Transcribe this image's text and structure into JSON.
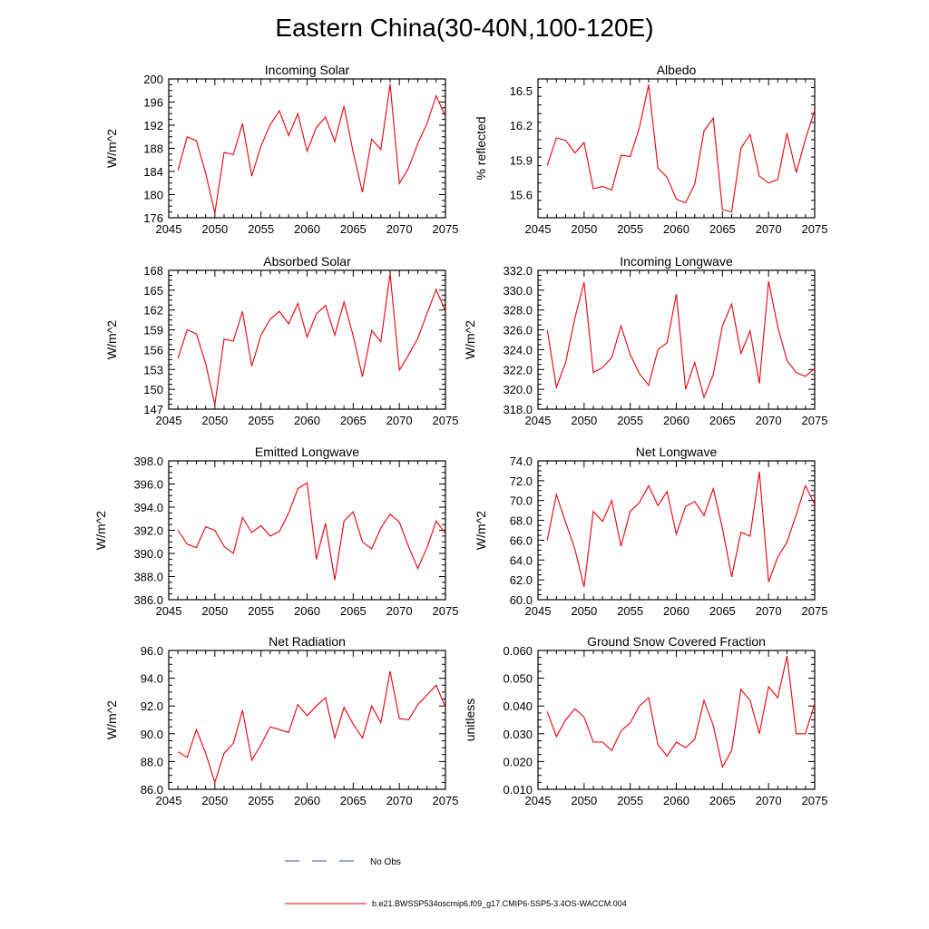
{
  "figure": {
    "title": "Eastern China(30-40N,100-120E)"
  },
  "legend": {
    "obs_label": "No Obs",
    "obs_color": "#3b4fb0",
    "model_label": "b.e21.BWSSP534oscmip6.f09_g17.CMIP6-SSP5-3.4OS-WACCM.004",
    "model_color": "#e8000b"
  },
  "chart_data": [
    {
      "type": "line",
      "title": "Incoming Solar",
      "xlabel": "",
      "ylabel": "W/m^2",
      "xlim": [
        2045,
        2075
      ],
      "ylim": [
        176,
        200
      ],
      "xticks": [
        2045,
        2050,
        2055,
        2060,
        2065,
        2070,
        2075
      ],
      "yticks": [
        176,
        180,
        184,
        188,
        192,
        196,
        200
      ],
      "ytick_labels": [
        "176",
        "180",
        "184",
        "188",
        "192",
        "196",
        "200"
      ],
      "x": [
        2046,
        2047,
        2048,
        2049,
        2050,
        2051,
        2052,
        2053,
        2054,
        2055,
        2056,
        2057,
        2058,
        2059,
        2060,
        2061,
        2062,
        2063,
        2064,
        2065,
        2066,
        2067,
        2068,
        2069,
        2070,
        2071,
        2072,
        2073,
        2074,
        2075
      ],
      "series": [
        {
          "name": "b.e21.BWSSP534oscmip6.f09_g17.CMIP6-SSP5-3.4OS-WACCM.004",
          "values": [
            184.2,
            190.0,
            189.3,
            183.7,
            176.8,
            187.3,
            186.9,
            192.3,
            183.2,
            188.4,
            192.1,
            194.5,
            190.2,
            194.0,
            187.5,
            191.6,
            193.4,
            189.2,
            195.3,
            187.3,
            180.4,
            189.6,
            187.8,
            199.1,
            181.9,
            184.6,
            188.8,
            192.3,
            197.1,
            193.5
          ]
        }
      ]
    },
    {
      "type": "line",
      "title": "Albedo",
      "xlabel": "",
      "ylabel": "% reflected",
      "xlim": [
        2045,
        2075
      ],
      "ylim": [
        15.4,
        16.6
      ],
      "xticks": [
        2045,
        2050,
        2055,
        2060,
        2065,
        2070,
        2075
      ],
      "yticks": [
        15.6,
        15.9,
        16.2,
        16.5
      ],
      "ytick_labels": [
        "15.6",
        "15.9",
        "16.2",
        "16.5"
      ],
      "x": [
        2046,
        2047,
        2048,
        2049,
        2050,
        2051,
        2052,
        2053,
        2054,
        2055,
        2056,
        2057,
        2058,
        2059,
        2060,
        2061,
        2062,
        2063,
        2064,
        2065,
        2066,
        2067,
        2068,
        2069,
        2070,
        2071,
        2072,
        2073,
        2074,
        2075
      ],
      "series": [
        {
          "name": "b.e21.BWSSP534oscmip6.f09_g17.CMIP6-SSP5-3.4OS-WACCM.004",
          "values": [
            15.85,
            16.09,
            16.07,
            15.96,
            16.05,
            15.65,
            15.67,
            15.64,
            15.94,
            15.93,
            16.18,
            16.55,
            15.83,
            15.75,
            15.56,
            15.53,
            15.69,
            16.15,
            16.26,
            15.47,
            15.45,
            16.0,
            16.12,
            15.76,
            15.7,
            15.73,
            16.13,
            15.79,
            16.08,
            16.33
          ]
        }
      ]
    },
    {
      "type": "line",
      "title": "Absorbed Solar",
      "xlabel": "",
      "ylabel": "W/m^2",
      "xlim": [
        2045,
        2075
      ],
      "ylim": [
        147,
        168
      ],
      "xticks": [
        2045,
        2050,
        2055,
        2060,
        2065,
        2070,
        2075
      ],
      "yticks": [
        147,
        150,
        153,
        156,
        159,
        162,
        165,
        168
      ],
      "ytick_labels": [
        "147",
        "150",
        "153",
        "156",
        "159",
        "162",
        "165",
        "168"
      ],
      "x": [
        2046,
        2047,
        2048,
        2049,
        2050,
        2051,
        2052,
        2053,
        2054,
        2055,
        2056,
        2057,
        2058,
        2059,
        2060,
        2061,
        2062,
        2063,
        2064,
        2065,
        2066,
        2067,
        2068,
        2069,
        2070,
        2071,
        2072,
        2073,
        2074,
        2075
      ],
      "series": [
        {
          "name": "b.e21.BWSSP534oscmip6.f09_g17.CMIP6-SSP5-3.4OS-WACCM.004",
          "values": [
            154.7,
            159.0,
            158.4,
            153.9,
            147.7,
            157.6,
            157.3,
            161.8,
            153.5,
            158.2,
            160.6,
            161.8,
            159.9,
            163.0,
            157.9,
            161.4,
            162.7,
            158.2,
            163.2,
            158.1,
            151.9,
            158.9,
            157.2,
            167.5,
            152.9,
            155.2,
            157.7,
            161.5,
            165.1,
            161.8
          ]
        }
      ]
    },
    {
      "type": "line",
      "title": "Incoming Longwave",
      "xlabel": "",
      "ylabel": "W/m^2",
      "xlim": [
        2045,
        2075
      ],
      "ylim": [
        318.0,
        332.0
      ],
      "xticks": [
        2045,
        2050,
        2055,
        2060,
        2065,
        2070,
        2075
      ],
      "yticks": [
        318,
        320,
        322,
        324,
        326,
        328,
        330,
        332
      ],
      "ytick_labels": [
        "318.0",
        "320.0",
        "322.0",
        "324.0",
        "326.0",
        "328.0",
        "330.0",
        "332.0"
      ],
      "x": [
        2046,
        2047,
        2048,
        2049,
        2050,
        2051,
        2052,
        2053,
        2054,
        2055,
        2056,
        2057,
        2058,
        2059,
        2060,
        2061,
        2062,
        2063,
        2064,
        2065,
        2066,
        2067,
        2068,
        2069,
        2070,
        2071,
        2072,
        2073,
        2074,
        2075
      ],
      "series": [
        {
          "name": "b.e21.BWSSP534oscmip6.f09_g17.CMIP6-SSP5-3.4OS-WACCM.004",
          "values": [
            326.0,
            320.2,
            322.7,
            327.2,
            330.8,
            321.7,
            322.2,
            323.2,
            326.4,
            323.5,
            321.6,
            320.4,
            324.0,
            324.7,
            329.6,
            320.0,
            322.7,
            319.2,
            321.5,
            326.4,
            328.6,
            323.6,
            325.9,
            320.6,
            330.9,
            326.3,
            322.9,
            321.7,
            321.3,
            322.1
          ]
        }
      ]
    },
    {
      "type": "line",
      "title": "Emitted Longwave",
      "xlabel": "",
      "ylabel": "W/m^2",
      "xlim": [
        2045,
        2075
      ],
      "ylim": [
        386.0,
        398.0
      ],
      "xticks": [
        2045,
        2050,
        2055,
        2060,
        2065,
        2070,
        2075
      ],
      "yticks": [
        386,
        388,
        390,
        392,
        394,
        396,
        398
      ],
      "ytick_labels": [
        "386.0",
        "388.0",
        "390.0",
        "392.0",
        "394.0",
        "396.0",
        "398.0"
      ],
      "x": [
        2046,
        2047,
        2048,
        2049,
        2050,
        2051,
        2052,
        2053,
        2054,
        2055,
        2056,
        2057,
        2058,
        2059,
        2060,
        2061,
        2062,
        2063,
        2064,
        2065,
        2066,
        2067,
        2068,
        2069,
        2070,
        2071,
        2072,
        2073,
        2074,
        2075
      ],
      "series": [
        {
          "name": "b.e21.BWSSP534oscmip6.f09_g17.CMIP6-SSP5-3.4OS-WACCM.004",
          "values": [
            392.0,
            390.8,
            390.5,
            392.3,
            392.0,
            390.6,
            390.0,
            393.1,
            391.8,
            392.4,
            391.5,
            391.9,
            393.5,
            395.6,
            396.1,
            389.5,
            392.6,
            387.7,
            392.8,
            393.6,
            391.0,
            390.4,
            392.2,
            393.4,
            392.7,
            390.6,
            388.7,
            390.5,
            392.8,
            391.7
          ]
        }
      ]
    },
    {
      "type": "line",
      "title": "Net Longwave",
      "xlabel": "",
      "ylabel": "W/m^2",
      "xlim": [
        2045,
        2075
      ],
      "ylim": [
        60.0,
        74.0
      ],
      "xticks": [
        2045,
        2050,
        2055,
        2060,
        2065,
        2070,
        2075
      ],
      "yticks": [
        60,
        62,
        64,
        66,
        68,
        70,
        72,
        74
      ],
      "ytick_labels": [
        "60.0",
        "62.0",
        "64.0",
        "66.0",
        "68.0",
        "70.0",
        "72.0",
        "74.0"
      ],
      "x": [
        2046,
        2047,
        2048,
        2049,
        2050,
        2051,
        2052,
        2053,
        2054,
        2055,
        2056,
        2057,
        2058,
        2059,
        2060,
        2061,
        2062,
        2063,
        2064,
        2065,
        2066,
        2067,
        2068,
        2069,
        2070,
        2071,
        2072,
        2073,
        2074,
        2075
      ],
      "series": [
        {
          "name": "b.e21.BWSSP534oscmip6.f09_g17.CMIP6-SSP5-3.4OS-WACCM.004",
          "values": [
            66.0,
            70.6,
            67.8,
            65.1,
            61.3,
            68.9,
            67.9,
            70.0,
            65.4,
            68.9,
            69.8,
            71.5,
            69.5,
            70.9,
            66.6,
            69.4,
            69.9,
            68.5,
            71.2,
            67.2,
            62.3,
            66.8,
            66.4,
            72.9,
            61.8,
            64.3,
            65.8,
            68.6,
            71.5,
            69.6
          ]
        }
      ]
    },
    {
      "type": "line",
      "title": "Net Radiation",
      "xlabel": "",
      "ylabel": "W/m^2",
      "xlim": [
        2045,
        2075
      ],
      "ylim": [
        86.0,
        96.0
      ],
      "xticks": [
        2045,
        2050,
        2055,
        2060,
        2065,
        2070,
        2075
      ],
      "yticks": [
        86,
        88,
        90,
        92,
        94,
        96
      ],
      "ytick_labels": [
        "86.0",
        "88.0",
        "90.0",
        "92.0",
        "94.0",
        "96.0"
      ],
      "x": [
        2046,
        2047,
        2048,
        2049,
        2050,
        2051,
        2052,
        2053,
        2054,
        2055,
        2056,
        2057,
        2058,
        2059,
        2060,
        2061,
        2062,
        2063,
        2064,
        2065,
        2066,
        2067,
        2068,
        2069,
        2070,
        2071,
        2072,
        2073,
        2074,
        2075
      ],
      "series": [
        {
          "name": "b.e21.BWSSP534oscmip6.f09_g17.CMIP6-SSP5-3.4OS-WACCM.004",
          "values": [
            88.7,
            88.3,
            90.3,
            88.6,
            86.5,
            88.6,
            89.3,
            91.7,
            88.1,
            89.2,
            90.5,
            90.3,
            90.1,
            92.1,
            91.3,
            92.0,
            92.6,
            89.7,
            91.9,
            90.7,
            89.7,
            92.0,
            90.8,
            94.5,
            91.1,
            91.0,
            92.1,
            92.8,
            93.5,
            91.9
          ]
        }
      ]
    },
    {
      "type": "line",
      "title": "Ground Snow Covered Fraction",
      "xlabel": "",
      "ylabel": "unitless",
      "xlim": [
        2045,
        2075
      ],
      "ylim": [
        0.01,
        0.06
      ],
      "xticks": [
        2045,
        2050,
        2055,
        2060,
        2065,
        2070,
        2075
      ],
      "yticks": [
        0.01,
        0.02,
        0.03,
        0.04,
        0.05,
        0.06
      ],
      "ytick_labels": [
        "0.010",
        "0.020",
        "0.030",
        "0.040",
        "0.050",
        "0.060"
      ],
      "x": [
        2046,
        2047,
        2048,
        2049,
        2050,
        2051,
        2052,
        2053,
        2054,
        2055,
        2056,
        2057,
        2058,
        2059,
        2060,
        2061,
        2062,
        2063,
        2064,
        2065,
        2066,
        2067,
        2068,
        2069,
        2070,
        2071,
        2072,
        2073,
        2074,
        2075
      ],
      "series": [
        {
          "name": "b.e21.BWSSP534oscmip6.f09_g17.CMIP6-SSP5-3.4OS-WACCM.004",
          "values": [
            0.038,
            0.029,
            0.035,
            0.039,
            0.036,
            0.027,
            0.027,
            0.024,
            0.031,
            0.034,
            0.04,
            0.043,
            0.026,
            0.022,
            0.027,
            0.025,
            0.028,
            0.042,
            0.033,
            0.018,
            0.024,
            0.046,
            0.042,
            0.03,
            0.047,
            0.043,
            0.058,
            0.03,
            0.03,
            0.041
          ]
        }
      ]
    }
  ]
}
